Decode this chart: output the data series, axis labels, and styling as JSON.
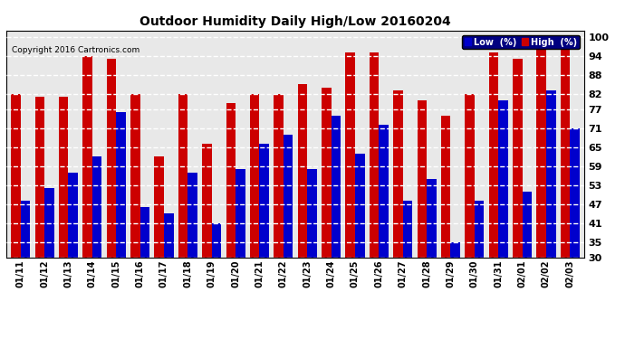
{
  "title": "Outdoor Humidity Daily High/Low 20160204",
  "copyright": "Copyright 2016 Cartronics.com",
  "background_color": "#ffffff",
  "plot_bg_color": "#ffffff",
  "grid_color": "#aaaaaa",
  "bar_color_low": "#0000cc",
  "bar_color_high": "#cc0000",
  "yticks": [
    30,
    35,
    41,
    47,
    53,
    59,
    65,
    71,
    77,
    82,
    88,
    94,
    100
  ],
  "ylim": [
    30,
    102
  ],
  "ybase": 30,
  "dates": [
    "01/11",
    "01/12",
    "01/13",
    "01/14",
    "01/15",
    "01/16",
    "01/17",
    "01/18",
    "01/19",
    "01/20",
    "01/21",
    "01/22",
    "01/23",
    "01/24",
    "01/25",
    "01/26",
    "01/27",
    "01/28",
    "01/29",
    "01/30",
    "01/31",
    "02/01",
    "02/02",
    "02/03"
  ],
  "high": [
    82,
    81,
    81,
    94,
    93,
    82,
    62,
    82,
    66,
    79,
    82,
    82,
    85,
    84,
    95,
    95,
    83,
    80,
    75,
    82,
    95,
    93,
    100,
    100
  ],
  "low": [
    48,
    52,
    57,
    62,
    76,
    46,
    44,
    57,
    41,
    58,
    66,
    69,
    58,
    75,
    63,
    72,
    48,
    55,
    35,
    48,
    80,
    51,
    83,
    71
  ]
}
